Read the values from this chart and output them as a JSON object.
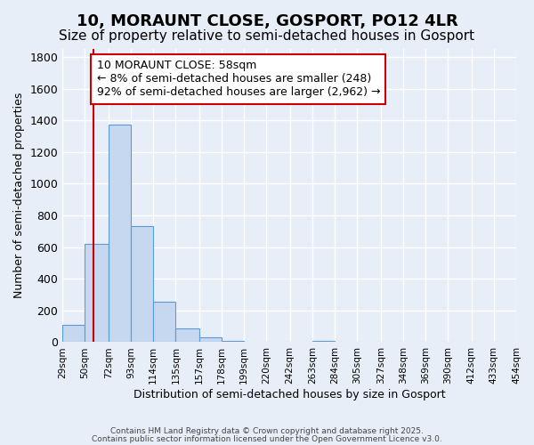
{
  "title": "10, MORAUNT CLOSE, GOSPORT, PO12 4LR",
  "subtitle": "Size of property relative to semi-detached houses in Gosport",
  "xlabel": "Distribution of semi-detached houses by size in Gosport",
  "ylabel": "Number of semi-detached properties",
  "bar_values": [
    110,
    620,
    1370,
    730,
    255,
    85,
    30,
    10,
    0,
    0,
    0,
    10,
    0,
    0,
    0,
    0,
    0,
    0,
    0,
    0
  ],
  "bin_labels": [
    "29sqm",
    "50sqm",
    "72sqm",
    "93sqm",
    "114sqm",
    "135sqm",
    "157sqm",
    "178sqm",
    "199sqm",
    "220sqm",
    "242sqm",
    "263sqm",
    "284sqm",
    "305sqm",
    "327sqm",
    "348sqm",
    "369sqm",
    "390sqm",
    "412sqm",
    "433sqm",
    "454sqm"
  ],
  "bin_edges": [
    29,
    50,
    72,
    93,
    114,
    135,
    157,
    178,
    199,
    220,
    242,
    263,
    284,
    305,
    327,
    348,
    369,
    390,
    412,
    433,
    454
  ],
  "bar_color": "#c5d8f0",
  "bar_edge_color": "#5b9bd5",
  "property_line_x": 58,
  "property_line_color": "#cc0000",
  "annotation_text": "10 MORAUNT CLOSE: 58sqm\n← 8% of semi-detached houses are smaller (248)\n92% of semi-detached houses are larger (2,962) →",
  "annotation_box_color": "#ffffff",
  "annotation_box_edge_color": "#cc0000",
  "ylim": [
    0,
    1850
  ],
  "yticks": [
    0,
    200,
    400,
    600,
    800,
    1000,
    1200,
    1400,
    1600,
    1800
  ],
  "bg_color": "#e8eef7",
  "grid_color": "#ffffff",
  "footer_line1": "Contains HM Land Registry data © Crown copyright and database right 2025.",
  "footer_line2": "Contains public sector information licensed under the Open Government Licence v3.0.",
  "title_fontsize": 13,
  "subtitle_fontsize": 11,
  "annotation_fontsize": 9
}
